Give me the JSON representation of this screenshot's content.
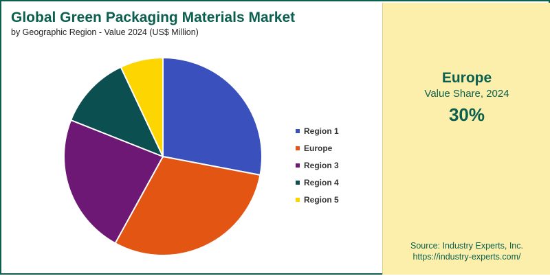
{
  "header": {
    "title": "Global Green Packaging Materials Market",
    "subtitle": "by Geographic Region - Value 2024 (US$ Million)"
  },
  "chart_data": {
    "type": "pie",
    "categories": [
      "Region 1",
      "Europe",
      "Region 3",
      "Region 4",
      "Region 5"
    ],
    "values": [
      28,
      30,
      23,
      12,
      7
    ],
    "colors": [
      "#3a50bd",
      "#e35512",
      "#6c1874",
      "#0b4f51",
      "#fdd500"
    ],
    "legend": "right",
    "title": "Global Green Packaging Materials Market",
    "subtitle": "by Geographic Region - Value 2024 (US$ Million)"
  },
  "highlight": {
    "region": "Europe",
    "label": "Value Share, 2024",
    "value": "30%"
  },
  "source": {
    "line1": "Source: Industry Experts, Inc.",
    "line2": "https://industry-experts.com/"
  }
}
